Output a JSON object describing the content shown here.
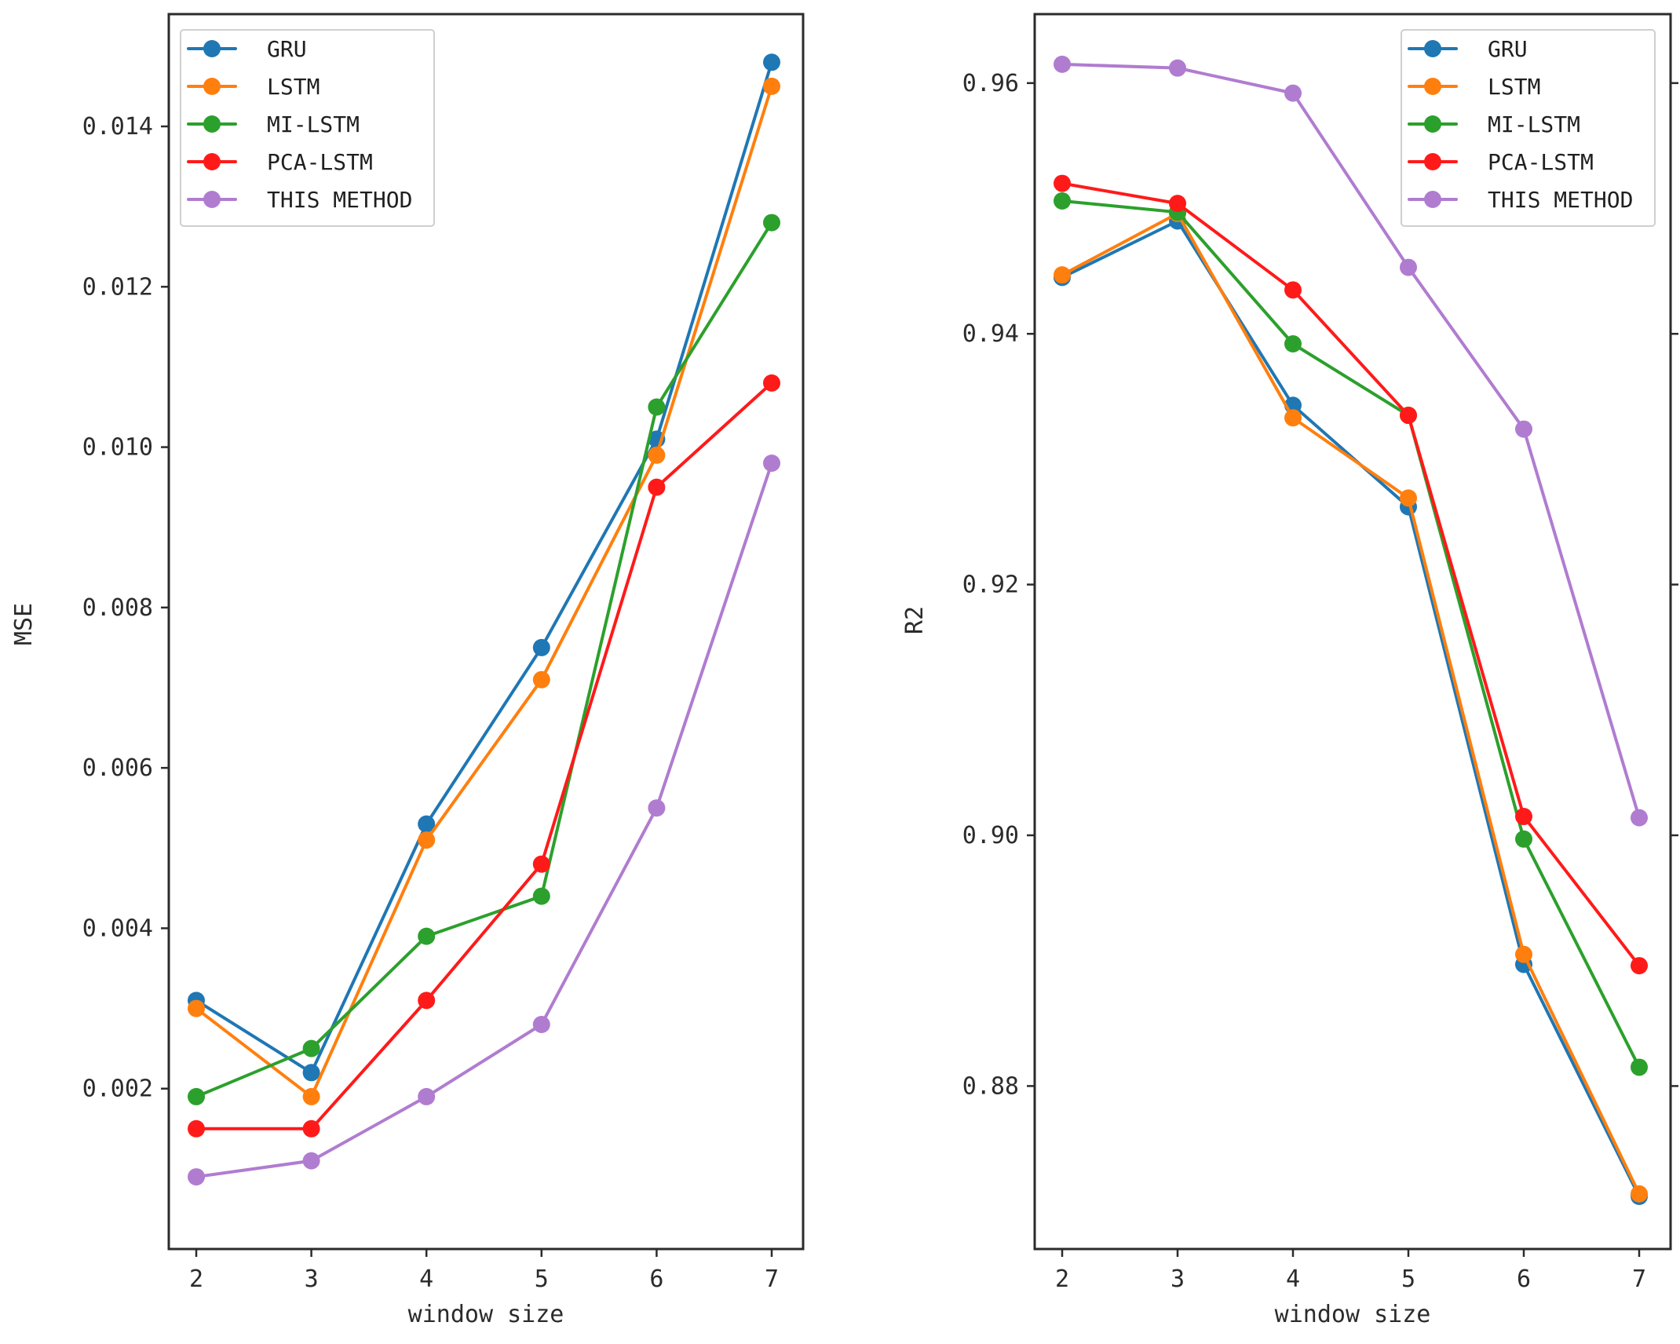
{
  "chart_data": [
    {
      "type": "line",
      "title": "",
      "xlabel": "window size",
      "ylabel": "MSE",
      "x": [
        2,
        3,
        4,
        5,
        6,
        7
      ],
      "xticks": [
        "2",
        "3",
        "4",
        "5",
        "6",
        "7"
      ],
      "ylim": [
        0.0,
        0.0154
      ],
      "yticks": [
        0.002,
        0.004,
        0.006,
        0.008,
        0.01,
        0.012,
        0.014
      ],
      "ytick_labels": [
        "0.002",
        "0.004",
        "0.006",
        "0.008",
        "0.010",
        "0.012",
        "0.014"
      ],
      "legend_position": "top-left",
      "series": [
        {
          "name": "GRU",
          "color": "#1f77b4",
          "values": [
            0.0031,
            0.0022,
            0.0053,
            0.0075,
            0.0101,
            0.0148
          ]
        },
        {
          "name": "LSTM",
          "color": "#ff7f0e",
          "values": [
            0.003,
            0.0019,
            0.0051,
            0.0071,
            0.0099,
            0.0145
          ]
        },
        {
          "name": "MI-LSTM",
          "color": "#2ca02c",
          "values": [
            0.0019,
            0.0025,
            0.0039,
            0.0044,
            0.0105,
            0.0128
          ]
        },
        {
          "name": "PCA-LSTM",
          "color": "#ff1a1a",
          "values": [
            0.0015,
            0.0015,
            0.0031,
            0.0048,
            0.0095,
            0.0108
          ]
        },
        {
          "name": "THIS METHOD",
          "color": "#b07cd0",
          "values": [
            0.0009,
            0.0011,
            0.0019,
            0.0028,
            0.0055,
            0.0098
          ]
        }
      ]
    },
    {
      "type": "line",
      "title": "",
      "xlabel": "window size",
      "ylabel": "R2",
      "x": [
        2,
        3,
        4,
        5,
        6,
        7
      ],
      "xticks": [
        "2",
        "3",
        "4",
        "5",
        "6",
        "7"
      ],
      "ylim": [
        0.867,
        0.9655
      ],
      "yticks": [
        0.88,
        0.9,
        0.92,
        0.94,
        0.96
      ],
      "ytick_labels": [
        "0.88",
        "0.90",
        "0.92",
        "0.94",
        "0.96"
      ],
      "legend_position": "top-right",
      "series": [
        {
          "name": "GRU",
          "color": "#1f77b4",
          "values": [
            0.9445,
            0.949,
            0.9343,
            0.9262,
            0.8897,
            0.8712
          ]
        },
        {
          "name": "LSTM",
          "color": "#ff7f0e",
          "values": [
            0.9447,
            0.9496,
            0.9333,
            0.9269,
            0.8905,
            0.8714
          ]
        },
        {
          "name": "MI-LSTM",
          "color": "#2ca02c",
          "values": [
            0.9506,
            0.9497,
            0.9392,
            0.9335,
            0.8997,
            0.8815
          ]
        },
        {
          "name": "PCA-LSTM",
          "color": "#ff1a1a",
          "values": [
            0.952,
            0.9504,
            0.9435,
            0.9335,
            0.9015,
            0.8896
          ]
        },
        {
          "name": "THIS METHOD",
          "color": "#b07cd0",
          "values": [
            0.9615,
            0.9612,
            0.9592,
            0.9453,
            0.9324,
            0.9014
          ]
        }
      ]
    }
  ]
}
